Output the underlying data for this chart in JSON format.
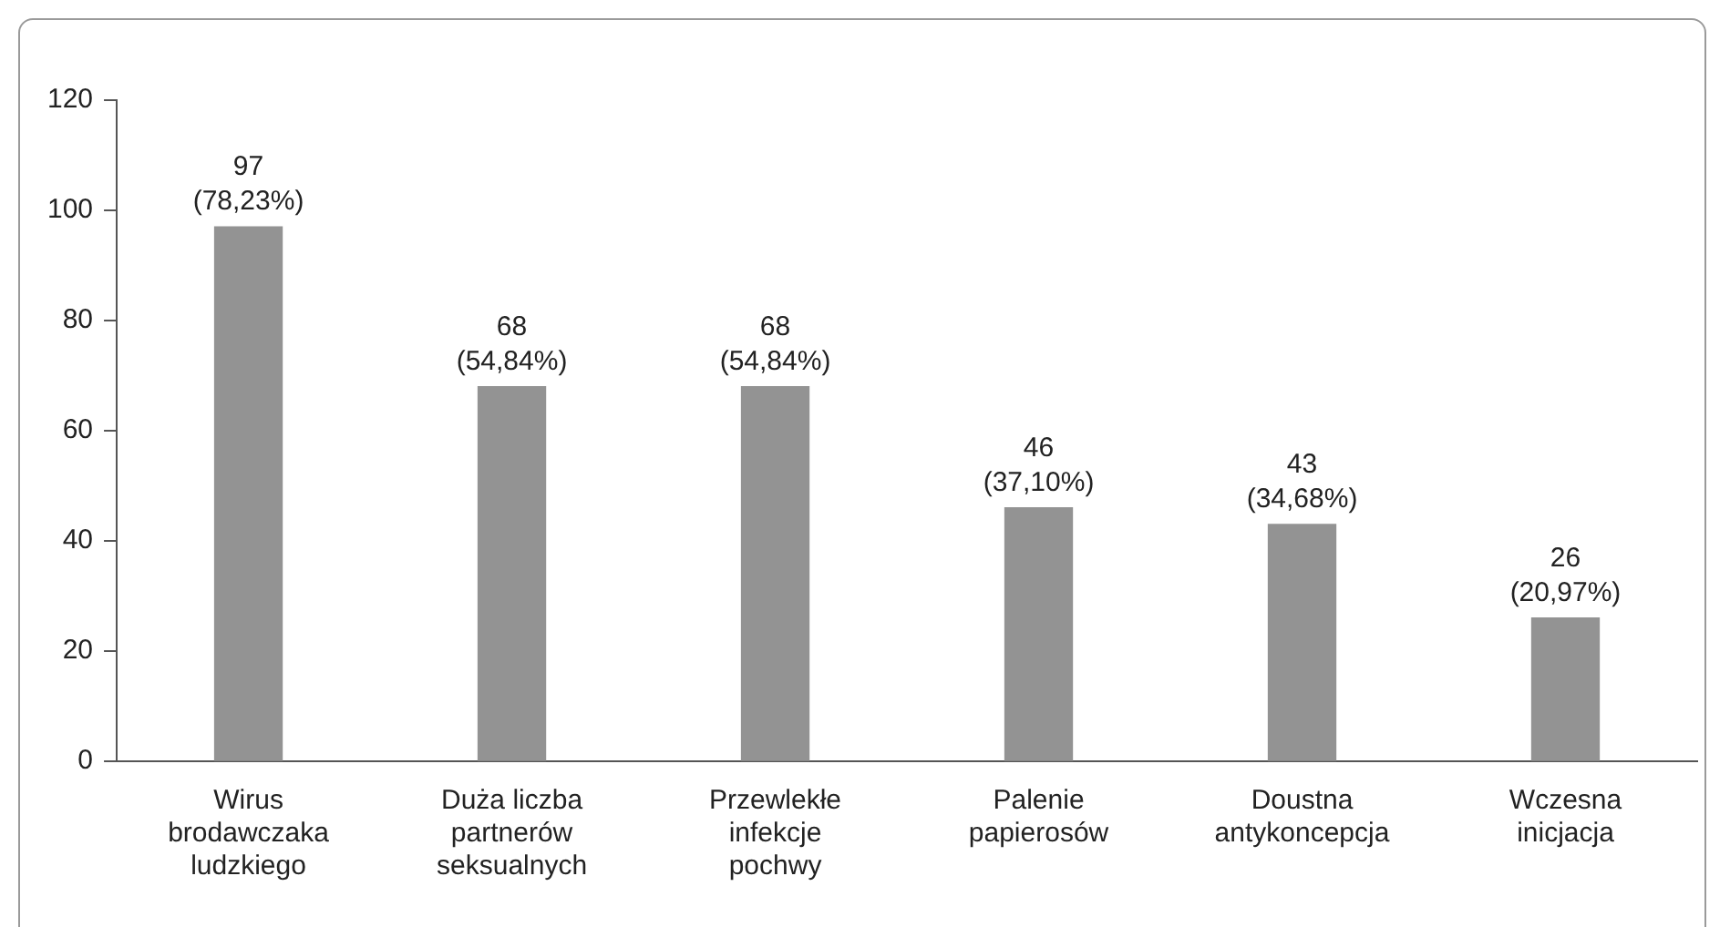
{
  "chart_data": {
    "type": "bar",
    "categories": [
      "Wirus\nbrodawczaka\nludzkiego",
      "Duża liczba\npartnerów\nseksualnych",
      "Przewlekłe\ninfekcje\npochwy",
      "Palenie\npapierosów",
      "Doustna\nantykoncepcja",
      "Wczesna\ninicjacja"
    ],
    "values": [
      97,
      68,
      68,
      46,
      43,
      26
    ],
    "value_labels": [
      "97\n(78,23%)",
      "68\n(54,84%)",
      "68\n(54,84%)",
      "46\n(37,10%)",
      "43\n(34,68%)",
      "26\n(20,97%)"
    ],
    "color": "#939393",
    "ylim": [
      0,
      120
    ],
    "yticks": [
      0,
      20,
      40,
      60,
      80,
      100,
      120
    ],
    "grid": false,
    "legend": false
  }
}
